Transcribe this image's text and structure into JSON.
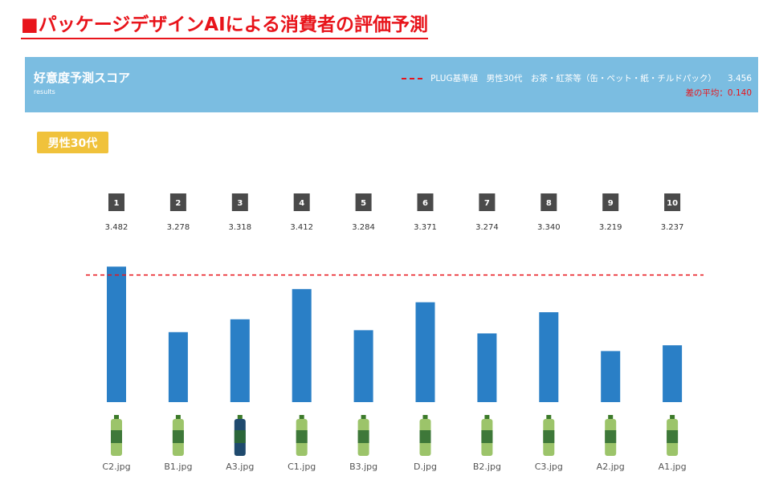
{
  "page_title": "■パッケージデザインAIによる消費者の評価予測",
  "header": {
    "title": "好意度予測スコア",
    "subtitle": "results",
    "benchmark_label": "PLUG基準値　男性30代　お茶・紅茶等（缶・ペット・紙・チルドパック）",
    "benchmark_value": "3.456",
    "avg_diff": "差の平均：0.140"
  },
  "segment_badge": "男性30代",
  "colors": {
    "title_red": "#e8141b",
    "header_blue": "#7bbde1",
    "bar_blue": "#2a7fc6",
    "badge_yellow": "#f0c23b",
    "rank_box_gray": "#4a4a4a"
  },
  "chart_data": {
    "type": "bar",
    "title": "",
    "xlabel": "",
    "ylabel": "",
    "ranks": [
      "1",
      "2",
      "3",
      "4",
      "5",
      "6",
      "7",
      "8",
      "9",
      "10"
    ],
    "categories": [
      "C2.jpg",
      "B1.jpg",
      "A3.jpg",
      "C1.jpg",
      "B3.jpg",
      "D.jpg",
      "B2.jpg",
      "C3.jpg",
      "A2.jpg",
      "A1.jpg"
    ],
    "score_labels": [
      "3.482",
      "3.278",
      "3.318",
      "3.412",
      "3.284",
      "3.371",
      "3.274",
      "3.340",
      "3.219",
      "3.237"
    ],
    "values": [
      3.482,
      3.278,
      3.318,
      3.412,
      3.284,
      3.371,
      3.274,
      3.34,
      3.219,
      3.237
    ],
    "reference_line": 3.456,
    "ylim": [
      3.06,
      3.5
    ],
    "grid": false,
    "legend": "top-right",
    "product_image_icons": [
      "green-tea-bottle-icon",
      "green-tea-bottle-icon",
      "dark-tea-bottle-icon",
      "green-tea-bottle-icon",
      "green-tea-bottle-icon",
      "green-tea-bottle-icon",
      "green-tea-bottle-icon",
      "green-tea-bottle-icon",
      "green-tea-bottle-icon",
      "green-tea-bottle-icon"
    ]
  }
}
